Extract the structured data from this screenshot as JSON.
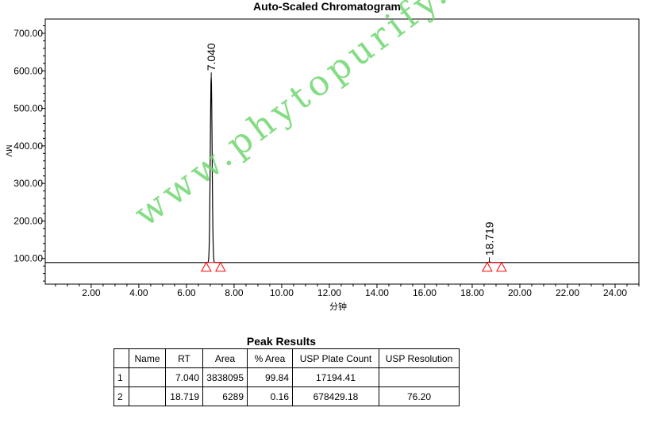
{
  "chart_data": {
    "type": "line",
    "title": "Auto-Scaled Chromatogram",
    "xlabel": "分钟",
    "ylabel": "MV",
    "xlim": [
      0.07,
      25.0
    ],
    "ylim": [
      31.8,
      738
    ],
    "x_ticks": [
      "2.00",
      "4.00",
      "6.00",
      "8.00",
      "10.00",
      "12.00",
      "14.00",
      "16.00",
      "18.00",
      "20.00",
      "22.00",
      "24.00"
    ],
    "y_ticks": [
      "100.00",
      "200.00",
      "300.00",
      "400.00",
      "500.00",
      "600.00",
      "700.00"
    ],
    "grid": false,
    "baseline": 89.4,
    "peaks": [
      {
        "rt_label": "7.040",
        "rt": 7.04,
        "height": 583,
        "start": 6.83,
        "end": 7.43,
        "width": 0.09
      },
      {
        "rt_label": "18.719",
        "rt": 18.719,
        "height": 90.5,
        "start": 18.63,
        "end": 19.23,
        "width": 0.1
      }
    ],
    "marker_color": "#ff0000",
    "trace_color": "#000000"
  },
  "results": {
    "title": "Peak Results",
    "headers": [
      "",
      "Name",
      "RT",
      "Area",
      "% Area",
      "USP Plate Count",
      "USP Resolution"
    ],
    "rows": [
      [
        "1",
        "",
        "7.040",
        "3838095",
        "99.84",
        "17194.41",
        ""
      ],
      [
        "2",
        "",
        "18.719",
        "6289",
        "0.16",
        "678429.18",
        "76.20"
      ]
    ]
  },
  "watermark": "www.phytopurify.com"
}
